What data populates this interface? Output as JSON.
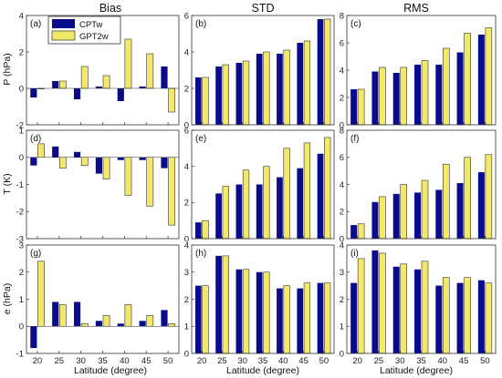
{
  "colors": {
    "series1": "#0a0a8c",
    "series2": "#f2e86a",
    "edge2": "#333333",
    "axis": "#333333"
  },
  "column_titles": [
    "Bias",
    "STD",
    "RMS"
  ],
  "row_ylabels": [
    "P (hPa)",
    "T (K)",
    "e (hPa)"
  ],
  "xlabel": "Latitude (degree)",
  "legend": [
    "CPTw",
    "GPT2w"
  ],
  "chart_data": [
    {
      "type": "bar",
      "tag": "(a)",
      "categories": [
        "20",
        "25",
        "30",
        "35",
        "40",
        "45",
        "50"
      ],
      "ylim": [
        -2,
        4
      ],
      "yticks": [
        "-2",
        "0",
        "2",
        "4"
      ],
      "ytick_values": [
        -2,
        0,
        2,
        4
      ],
      "show_xticks": false,
      "series": [
        {
          "name": "CPTw",
          "values": [
            -0.5,
            0.4,
            -0.6,
            0.1,
            -0.7,
            0.1,
            1.2
          ]
        },
        {
          "name": "GPT2w",
          "values": [
            0.0,
            0.4,
            1.2,
            0.7,
            2.7,
            1.9,
            -1.3
          ]
        }
      ]
    },
    {
      "type": "bar",
      "tag": "(b)",
      "categories": [
        "20",
        "25",
        "30",
        "35",
        "40",
        "45",
        "50"
      ],
      "ylim": [
        0,
        6
      ],
      "yticks": [
        "0",
        "2",
        "4",
        "6"
      ],
      "ytick_values": [
        0,
        2,
        4,
        6
      ],
      "show_xticks": false,
      "series": [
        {
          "name": "CPTw",
          "values": [
            2.6,
            3.2,
            3.4,
            3.9,
            3.9,
            4.5,
            5.8
          ]
        },
        {
          "name": "GPT2w",
          "values": [
            2.6,
            3.3,
            3.5,
            4.0,
            4.1,
            4.6,
            5.8
          ]
        }
      ]
    },
    {
      "type": "bar",
      "tag": "(c)",
      "categories": [
        "20",
        "25",
        "30",
        "35",
        "40",
        "45",
        "50"
      ],
      "ylim": [
        0,
        8
      ],
      "yticks": [
        "0",
        "2",
        "4",
        "6",
        "8"
      ],
      "ytick_values": [
        0,
        2,
        4,
        6,
        8
      ],
      "show_xticks": false,
      "series": [
        {
          "name": "CPTw",
          "values": [
            2.6,
            3.9,
            3.8,
            4.4,
            4.4,
            5.3,
            6.6
          ]
        },
        {
          "name": "GPT2w",
          "values": [
            2.6,
            4.2,
            4.2,
            4.7,
            5.6,
            6.7,
            7.1
          ]
        }
      ]
    },
    {
      "type": "bar",
      "tag": "(d)",
      "categories": [
        "20",
        "25",
        "30",
        "35",
        "40",
        "45",
        "50"
      ],
      "ylim": [
        -3,
        1
      ],
      "yticks": [
        "-3",
        "-2",
        "-1",
        "0",
        "1"
      ],
      "ytick_values": [
        -3,
        -2,
        -1,
        0,
        1
      ],
      "show_xticks": false,
      "series": [
        {
          "name": "CPTw",
          "values": [
            -0.3,
            0.4,
            0.2,
            -0.6,
            -0.1,
            -0.1,
            -0.4
          ]
        },
        {
          "name": "GPT2w",
          "values": [
            0.5,
            -0.4,
            -0.3,
            -0.8,
            -1.4,
            -1.8,
            -2.5
          ]
        }
      ]
    },
    {
      "type": "bar",
      "tag": "(e)",
      "categories": [
        "20",
        "25",
        "30",
        "35",
        "40",
        "45",
        "50"
      ],
      "ylim": [
        0,
        6
      ],
      "yticks": [
        "0",
        "2",
        "4",
        "6"
      ],
      "ytick_values": [
        0,
        2,
        4,
        6
      ],
      "show_xticks": false,
      "series": [
        {
          "name": "CPTw",
          "values": [
            0.9,
            2.5,
            3.0,
            3.0,
            3.4,
            3.9,
            4.7
          ]
        },
        {
          "name": "GPT2w",
          "values": [
            1.0,
            2.9,
            3.8,
            4.0,
            5.0,
            5.3,
            5.6
          ]
        }
      ]
    },
    {
      "type": "bar",
      "tag": "(f)",
      "categories": [
        "20",
        "25",
        "30",
        "35",
        "40",
        "45",
        "50"
      ],
      "ylim": [
        0,
        8
      ],
      "yticks": [
        "0",
        "2",
        "4",
        "6",
        "8"
      ],
      "ytick_values": [
        0,
        2,
        4,
        6,
        8
      ],
      "show_xticks": false,
      "series": [
        {
          "name": "CPTw",
          "values": [
            1.0,
            2.7,
            3.3,
            3.4,
            3.6,
            4.1,
            4.9
          ]
        },
        {
          "name": "GPT2w",
          "values": [
            1.1,
            3.1,
            4.0,
            4.3,
            5.5,
            6.0,
            6.2
          ]
        }
      ]
    },
    {
      "type": "bar",
      "tag": "(g)",
      "categories": [
        "20",
        "25",
        "30",
        "35",
        "40",
        "45",
        "50"
      ],
      "ylim": [
        -1,
        3
      ],
      "yticks": [
        "-1",
        "0",
        "1",
        "2",
        "3"
      ],
      "ytick_values": [
        -1,
        0,
        1,
        2,
        3
      ],
      "show_xticks": true,
      "series": [
        {
          "name": "CPTw",
          "values": [
            -0.8,
            0.9,
            0.9,
            0.2,
            0.1,
            0.2,
            0.6
          ]
        },
        {
          "name": "GPT2w",
          "values": [
            2.4,
            0.8,
            0.1,
            0.4,
            0.8,
            0.4,
            0.1
          ]
        }
      ]
    },
    {
      "type": "bar",
      "tag": "(h)",
      "categories": [
        "20",
        "25",
        "30",
        "35",
        "40",
        "45",
        "50"
      ],
      "ylim": [
        0,
        4
      ],
      "yticks": [
        "0",
        "1",
        "2",
        "3",
        "4"
      ],
      "ytick_values": [
        0,
        1,
        2,
        3,
        4
      ],
      "show_xticks": true,
      "series": [
        {
          "name": "CPTw",
          "values": [
            2.5,
            3.6,
            3.1,
            3.0,
            2.4,
            2.4,
            2.6
          ]
        },
        {
          "name": "GPT2w",
          "values": [
            2.5,
            3.6,
            3.1,
            3.0,
            2.5,
            2.6,
            2.6
          ]
        }
      ]
    },
    {
      "type": "bar",
      "tag": "(i)",
      "categories": [
        "20",
        "25",
        "30",
        "35",
        "40",
        "45",
        "50"
      ],
      "ylim": [
        0,
        4
      ],
      "yticks": [
        "0",
        "1",
        "2",
        "3",
        "4"
      ],
      "ytick_values": [
        0,
        1,
        2,
        3,
        4
      ],
      "show_xticks": true,
      "series": [
        {
          "name": "CPTw",
          "values": [
            2.6,
            3.8,
            3.2,
            3.1,
            2.5,
            2.6,
            2.7
          ]
        },
        {
          "name": "GPT2w",
          "values": [
            3.5,
            3.7,
            3.3,
            3.4,
            2.8,
            2.8,
            2.6
          ]
        }
      ]
    }
  ]
}
